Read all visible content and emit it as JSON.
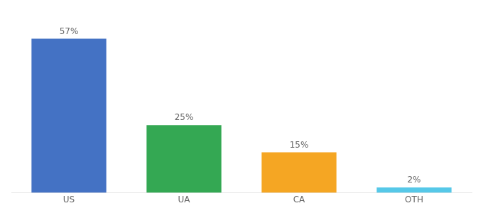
{
  "chart_data": {
    "type": "bar",
    "categories": [
      "US",
      "UA",
      "CA",
      "OTH"
    ],
    "values": [
      57,
      25,
      15,
      2
    ],
    "value_labels": [
      "57%",
      "25%",
      "15%",
      "2%"
    ],
    "colors": [
      "#4472c4",
      "#34a853",
      "#f5a623",
      "#56c8e8"
    ],
    "ylim": [
      0,
      65
    ],
    "grid": false,
    "data_labels": true,
    "tick_labels": "x"
  }
}
